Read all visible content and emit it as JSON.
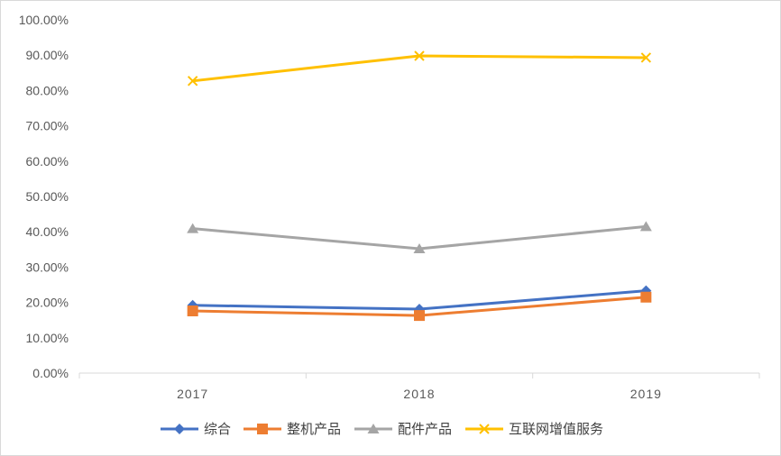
{
  "chart_data": {
    "type": "line",
    "categories": [
      "2017",
      "2018",
      "2019"
    ],
    "ylim": [
      0,
      100
    ],
    "y_tick_format": "percent-2dp",
    "yticks": [
      "0.00%",
      "10.00%",
      "20.00%",
      "30.00%",
      "40.00%",
      "50.00%",
      "60.00%",
      "70.00%",
      "80.00%",
      "90.00%",
      "100.00%"
    ],
    "grid": false,
    "legend_position": "bottom",
    "series": [
      {
        "name": "综合",
        "values": [
          19.2,
          18.1,
          23.3
        ],
        "color": "#4472c4",
        "marker": "diamond"
      },
      {
        "name": "整机产品",
        "values": [
          17.6,
          16.3,
          21.5
        ],
        "color": "#ed7d31",
        "marker": "square"
      },
      {
        "name": "配件产品",
        "values": [
          40.9,
          35.2,
          41.5
        ],
        "color": "#a5a5a5",
        "marker": "triangle"
      },
      {
        "name": "互联网增值服务",
        "values": [
          82.7,
          89.8,
          89.3
        ],
        "color": "#ffc000",
        "marker": "x"
      }
    ]
  }
}
